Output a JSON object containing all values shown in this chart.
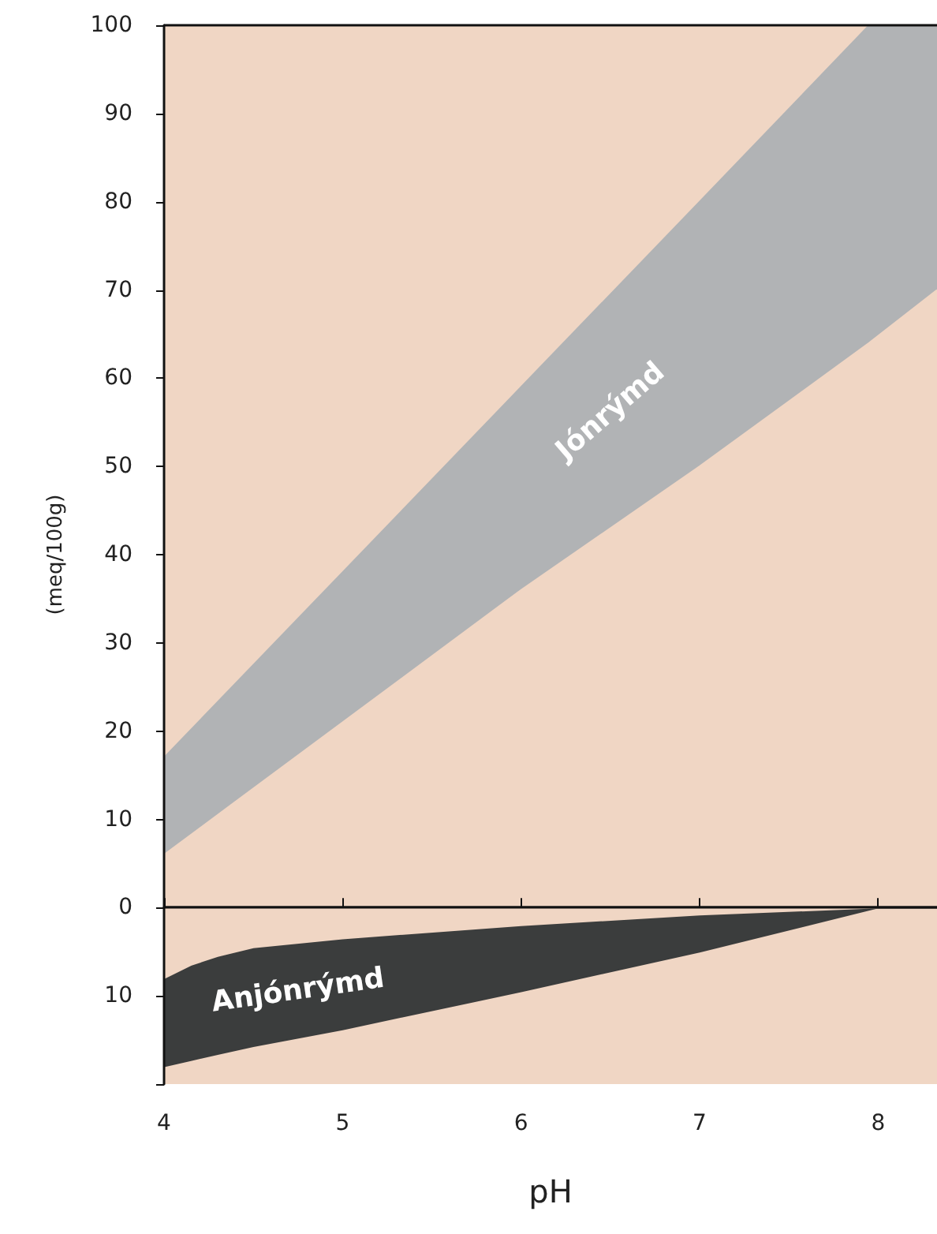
{
  "chart_data": {
    "type": "area",
    "xlabel": "pH",
    "ylabel": "(meq/100g)",
    "xlim": [
      4,
      8.33
    ],
    "xticks": [
      4,
      5,
      6,
      7,
      8
    ],
    "ylim": [
      -20,
      100
    ],
    "yticks": [
      {
        "value": -20,
        "label": null
      },
      {
        "value": -10,
        "label": "10"
      },
      0,
      10,
      20,
      30,
      40,
      50,
      60,
      70,
      80,
      90,
      100
    ],
    "grid": false,
    "legend": false,
    "ref_lines": [
      {
        "axis": "y",
        "value": 0,
        "color": "#1a1a1a"
      }
    ],
    "series": [
      {
        "name": "Jónrýmd",
        "color": "#b1b3b5",
        "x": [
          4,
          5,
          6,
          7,
          7.95,
          8.33
        ],
        "values": [
          17,
          38,
          59,
          80,
          100,
          100
        ]
      },
      {
        "color": "#f0d6c4",
        "x": [
          4,
          5,
          6,
          7,
          7.95,
          8.33
        ],
        "values": [
          6,
          21,
          36,
          50,
          64,
          70
        ]
      },
      {
        "name": "Anjónrýmd",
        "color": "#3b3d3d",
        "x": [
          4,
          4.15,
          4.3,
          4.5,
          5,
          6,
          7,
          8
        ],
        "values": [
          -18,
          -17.3,
          -16.6,
          -15.7,
          -13.8,
          -9.5,
          -5,
          0
        ]
      },
      {
        "color": "#f0d6c4",
        "x": [
          4,
          4.15,
          4.3,
          4.5,
          5,
          6,
          7,
          8
        ],
        "values": [
          -8,
          -6.5,
          -5.5,
          -4.5,
          -3.5,
          -2,
          -0.8,
          0
        ]
      }
    ]
  }
}
